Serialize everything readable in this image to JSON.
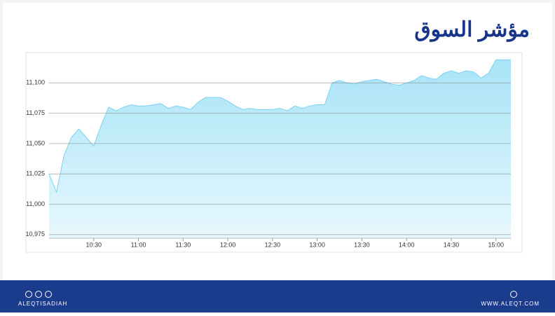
{
  "chart_data": {
    "type": "area",
    "title": "مؤشر السوق",
    "x": [
      600,
      605,
      610,
      615,
      620,
      625,
      630,
      635,
      640,
      645,
      650,
      655,
      660,
      665,
      670,
      675,
      680,
      685,
      690,
      695,
      700,
      705,
      710,
      715,
      720,
      725,
      730,
      735,
      740,
      745,
      750,
      755,
      760,
      765,
      770,
      775,
      780,
      785,
      790,
      795,
      800,
      805,
      810,
      815,
      820,
      825,
      830,
      835,
      840,
      845,
      850,
      855,
      860,
      865,
      870,
      875,
      880,
      885,
      890,
      895,
      900,
      905,
      910
    ],
    "values": [
      11025,
      11010,
      11040,
      11055,
      11062,
      11055,
      11048,
      11065,
      11080,
      11077,
      11080,
      11082,
      11081,
      11081,
      11082,
      11083,
      11079,
      11081,
      11080,
      11078,
      11084,
      11088,
      11088,
      11088,
      11085,
      11081,
      11078,
      11079,
      11078,
      11078,
      11078,
      11079,
      11077,
      11081,
      11079,
      11081,
      11082,
      11082,
      11100,
      11102,
      11100,
      11099,
      11101,
      11102,
      11103,
      11101,
      11099,
      11098,
      11100,
      11102,
      11106,
      11104,
      11103,
      11108,
      11110,
      11108,
      11110,
      11109,
      11104,
      11108,
      11119,
      11119,
      11119
    ],
    "color": "#79d2f2",
    "xlim": [
      600,
      910
    ],
    "xticks": [
      {
        "value": 630,
        "label": "10:30"
      },
      {
        "value": 660,
        "label": "11:00"
      },
      {
        "value": 690,
        "label": "11:30"
      },
      {
        "value": 720,
        "label": "12:00"
      },
      {
        "value": 750,
        "label": "12:30"
      },
      {
        "value": 780,
        "label": "13:00"
      },
      {
        "value": 810,
        "label": "13:30"
      },
      {
        "value": 840,
        "label": "14:00"
      },
      {
        "value": 870,
        "label": "14:30"
      },
      {
        "value": 900,
        "label": "15:00"
      }
    ],
    "ylim": [
      10972,
      11125
    ],
    "yticks": [
      {
        "value": 10975,
        "label": "10,975"
      },
      {
        "value": 11000,
        "label": "11,000"
      },
      {
        "value": 11025,
        "label": "11,025"
      },
      {
        "value": 11050,
        "label": "11,050"
      },
      {
        "value": 11075,
        "label": "11,075"
      },
      {
        "value": 11100,
        "label": "11,100"
      }
    ],
    "grid": true
  },
  "footer": {
    "left": "ALEQTISADIAH",
    "right": "WWW.ALEQT.COM"
  }
}
